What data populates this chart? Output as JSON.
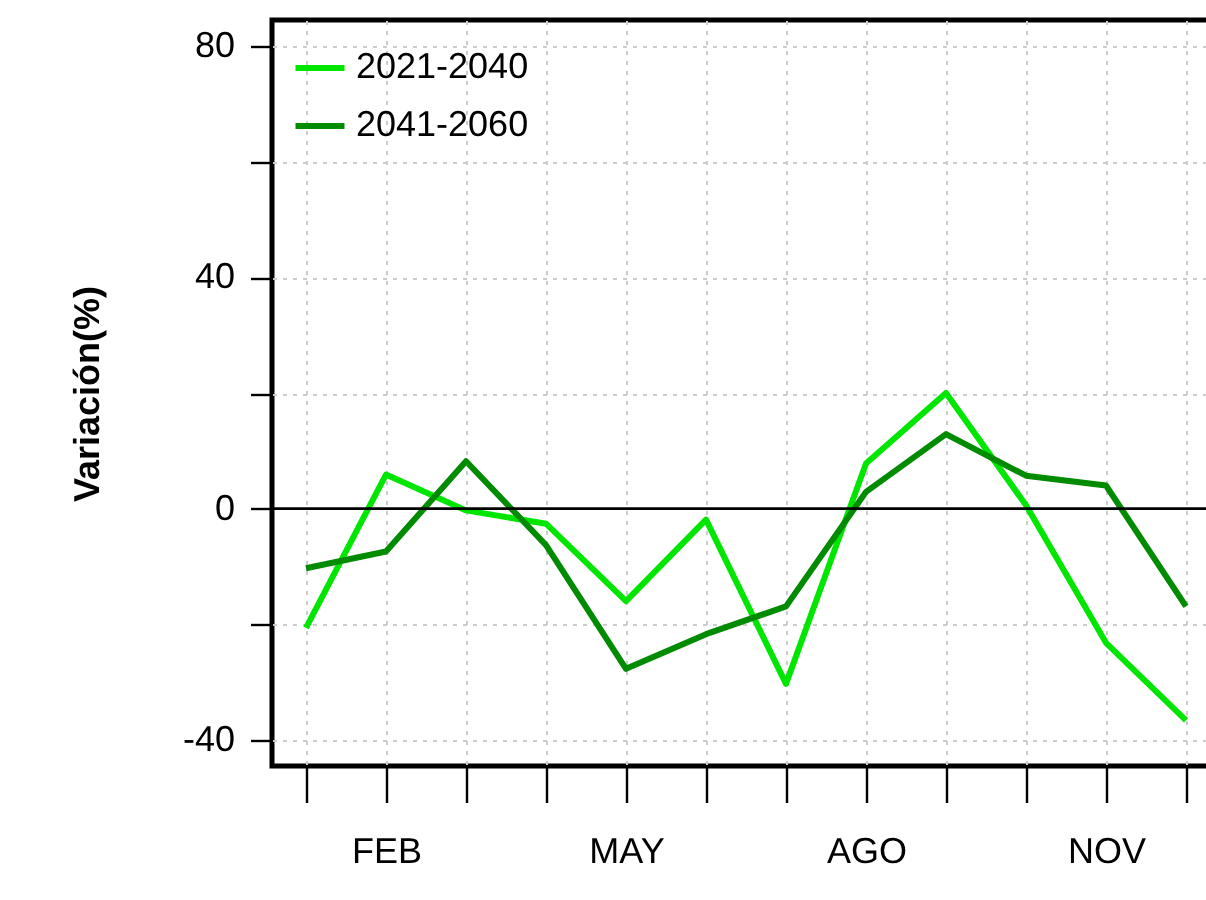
{
  "chart_data": {
    "type": "line",
    "ylabel": "Variación(%)",
    "categories": [
      null,
      "FEB",
      null,
      null,
      "MAY",
      null,
      null,
      "AGO",
      null,
      null,
      "NOV",
      null
    ],
    "ylim": [
      -44.5,
      84.5
    ],
    "yticks": [
      -40,
      {
        "value": -20,
        "label": null
      },
      0,
      {
        "value": 20,
        "label": null
      },
      40,
      {
        "value": 60,
        "label": null
      },
      80
    ],
    "series": [
      {
        "name": "2021-2040",
        "color": "#00e600",
        "values": [
          -20.6,
          5.9,
          -0.3,
          -2.6,
          -16,
          -1.9,
          -30.3,
          7.8,
          20,
          0.6,
          -23.2,
          -36.6
        ]
      },
      {
        "name": "2041-2060",
        "color": "#008b00",
        "values": [
          -10.3,
          -7.4,
          8.2,
          -6.3,
          -27.7,
          -21.7,
          -16.9,
          2.9,
          12.9,
          5.7,
          4,
          -16.9
        ]
      }
    ],
    "ref_lines": [
      {
        "axis": "y",
        "value": 0,
        "color": "#000000"
      }
    ],
    "grid": true,
    "legend": "top left",
    "line_style": "solid",
    "marker": "none"
  }
}
